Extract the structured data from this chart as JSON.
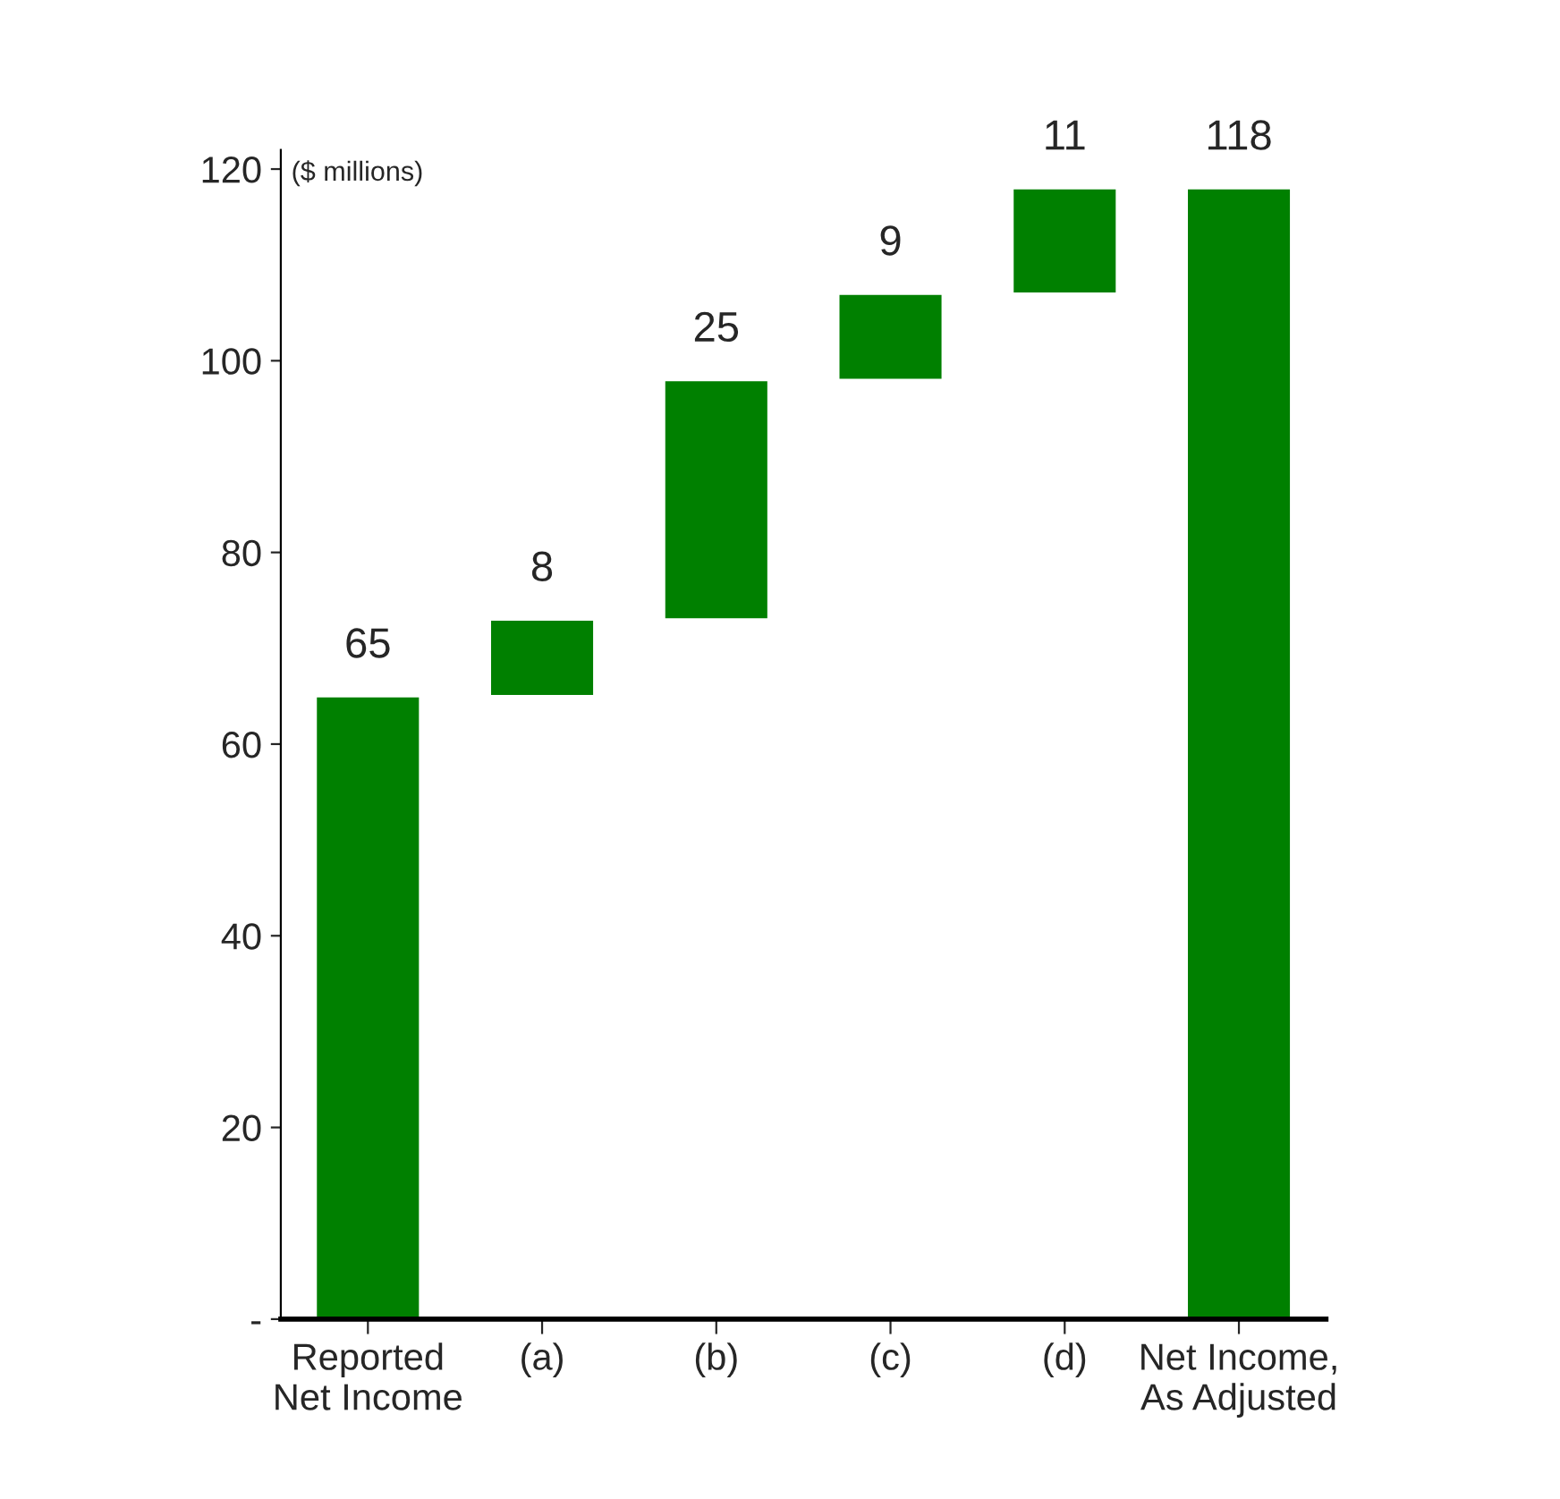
{
  "chart_data": {
    "type": "bar",
    "categories": [
      "Reported\nNet Income",
      "(a)",
      "(b)",
      "(c)",
      "(d)",
      "Net Income,\nAs Adjusted"
    ],
    "values": [
      65,
      8,
      25,
      9,
      11,
      118
    ],
    "base": [
      0,
      65,
      73,
      98,
      107,
      0
    ],
    "color": "#008000",
    "data_labels": true,
    "ylim": [
      0,
      122
    ],
    "yticks": [
      {
        "value": 0,
        "label": "-"
      },
      20,
      40,
      60,
      80,
      100,
      120
    ],
    "annotations": [
      "($ millions)"
    ],
    "grid": false
  }
}
